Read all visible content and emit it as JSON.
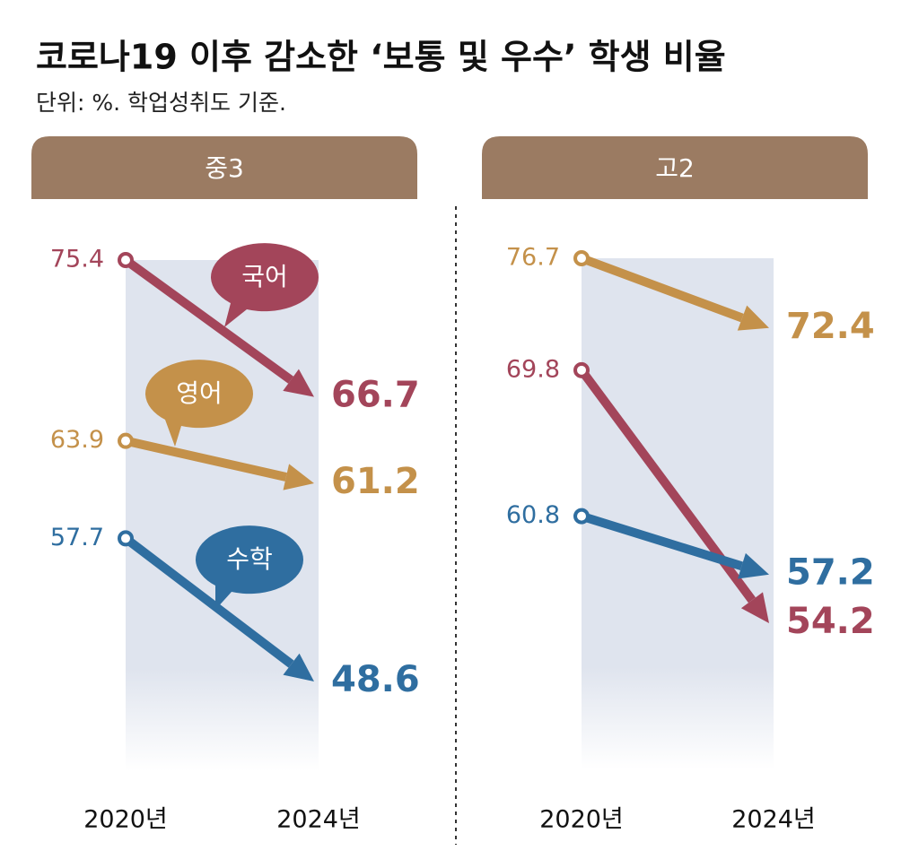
{
  "title": "코로나19 이후 감소한 ‘보통 및 우수’ 학생 비율",
  "subtitle": "단위: %. 학업성취도 기준.",
  "chart_data": [
    {
      "type": "line",
      "title": "중3",
      "categories": [
        "2020년",
        "2024년"
      ],
      "series": [
        {
          "name": "국어",
          "color": "#a3455a",
          "values": [
            75.4,
            66.7
          ]
        },
        {
          "name": "영어",
          "color": "#c4914a",
          "values": [
            63.9,
            61.2
          ]
        },
        {
          "name": "수학",
          "color": "#2f6ea0",
          "values": [
            57.7,
            48.6
          ]
        }
      ]
    },
    {
      "type": "line",
      "title": "고2",
      "categories": [
        "2020년",
        "2024년"
      ],
      "series": [
        {
          "color": "#c4914a",
          "values": [
            76.7,
            72.4
          ]
        },
        {
          "color": "#a3455a",
          "values": [
            69.8,
            54.2
          ]
        },
        {
          "color": "#2f6ea0",
          "values": [
            60.8,
            57.2
          ]
        }
      ]
    }
  ]
}
